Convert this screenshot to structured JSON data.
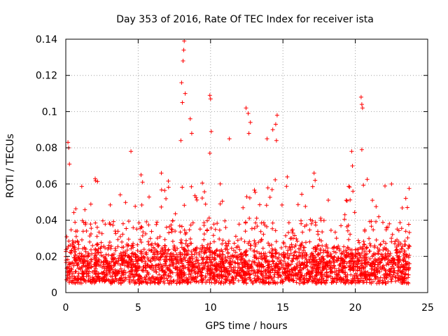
{
  "chart_data": {
    "type": "scatter",
    "title": "Day 353 of 2016, Rate Of TEC Index for receiver ista",
    "xlabel": "GPS time / hours",
    "ylabel": "ROTI / TECUs",
    "xlim": [
      0,
      25
    ],
    "ylim": [
      0,
      0.14
    ],
    "xticks": [
      0,
      5,
      10,
      15,
      20,
      25
    ],
    "yticks": [
      0,
      0.02,
      0.04,
      0.06,
      0.08,
      0.1,
      0.12,
      0.14
    ],
    "xtick_labels": [
      "0",
      "5",
      "10",
      "15",
      "20",
      "25"
    ],
    "ytick_labels": [
      "0",
      "0.02",
      "0.04",
      "0.06",
      "0.08",
      "0.1",
      "0.12",
      "0.14"
    ],
    "grid": true,
    "marker": "+",
    "color": "#ff0000",
    "series": [
      {
        "name": "ROTI",
        "x_range": [
          0,
          23.75
        ],
        "baseline_band": [
          0.005,
          0.03
        ],
        "notable_points": [
          {
            "x": 0.15,
            "y": 0.083
          },
          {
            "x": 0.2,
            "y": 0.08
          },
          {
            "x": 0.25,
            "y": 0.071
          },
          {
            "x": 4.5,
            "y": 0.078
          },
          {
            "x": 5.2,
            "y": 0.065
          },
          {
            "x": 6.6,
            "y": 0.066
          },
          {
            "x": 7.95,
            "y": 0.084
          },
          {
            "x": 8.0,
            "y": 0.116
          },
          {
            "x": 8.05,
            "y": 0.105
          },
          {
            "x": 8.1,
            "y": 0.128
          },
          {
            "x": 8.15,
            "y": 0.134
          },
          {
            "x": 8.18,
            "y": 0.139
          },
          {
            "x": 8.25,
            "y": 0.11
          },
          {
            "x": 8.6,
            "y": 0.096
          },
          {
            "x": 8.7,
            "y": 0.088
          },
          {
            "x": 9.95,
            "y": 0.109
          },
          {
            "x": 10.0,
            "y": 0.107
          },
          {
            "x": 10.05,
            "y": 0.089
          },
          {
            "x": 9.95,
            "y": 0.077
          },
          {
            "x": 11.3,
            "y": 0.085
          },
          {
            "x": 12.45,
            "y": 0.102
          },
          {
            "x": 12.6,
            "y": 0.099
          },
          {
            "x": 12.75,
            "y": 0.094
          },
          {
            "x": 12.65,
            "y": 0.088
          },
          {
            "x": 13.9,
            "y": 0.085
          },
          {
            "x": 14.3,
            "y": 0.09
          },
          {
            "x": 14.5,
            "y": 0.093
          },
          {
            "x": 14.6,
            "y": 0.098
          },
          {
            "x": 14.55,
            "y": 0.084
          },
          {
            "x": 17.15,
            "y": 0.066
          },
          {
            "x": 19.75,
            "y": 0.078
          },
          {
            "x": 19.8,
            "y": 0.07
          },
          {
            "x": 20.4,
            "y": 0.108
          },
          {
            "x": 20.45,
            "y": 0.104
          },
          {
            "x": 20.5,
            "y": 0.102
          },
          {
            "x": 20.45,
            "y": 0.079
          },
          {
            "x": 22.5,
            "y": 0.06
          },
          {
            "x": 23.6,
            "y": 0.047
          }
        ]
      }
    ]
  }
}
